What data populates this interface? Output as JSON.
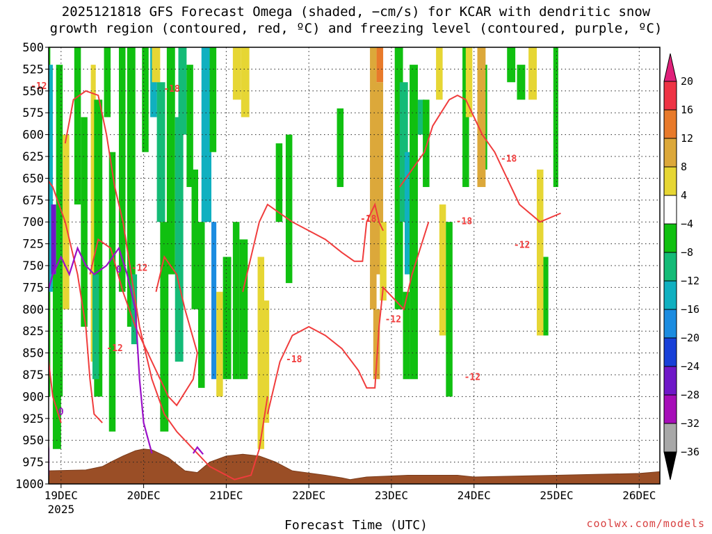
{
  "title_line1": "2025121818 GFS Forecast Omega (shaded, −cm/s) for KCAR with dendritic snow",
  "title_line2": "growth region (contoured, red, ºC) and freezing level (contoured, purple, ºC)",
  "credit": "coolwx.com/models",
  "chart_data": {
    "type": "heatmap",
    "xlabel": "Forecast Time (UTC)",
    "ylabel": "",
    "x_ticks": [
      {
        "label": "19DEC",
        "sub": "2025",
        "t": 0
      },
      {
        "label": "20DEC",
        "t": 1
      },
      {
        "label": "21DEC",
        "t": 2
      },
      {
        "label": "22DEC",
        "t": 3
      },
      {
        "label": "23DEC",
        "t": 4
      },
      {
        "label": "24DEC",
        "t": 5
      },
      {
        "label": "25DEC",
        "t": 6
      },
      {
        "label": "26DEC",
        "t": 7
      }
    ],
    "x_range_days": [
      -0.15,
      7.25
    ],
    "y_ticks": [
      500,
      525,
      550,
      575,
      600,
      625,
      650,
      675,
      700,
      725,
      750,
      775,
      800,
      825,
      850,
      875,
      900,
      925,
      950,
      975,
      1000
    ],
    "y_range_hpa": [
      500,
      1000
    ],
    "colorbar": {
      "labels": [
        "20",
        "16",
        "12",
        "8",
        "4",
        "−4",
        "−8",
        "−12",
        "−16",
        "−20",
        "−24",
        "−28",
        "−32",
        "−36"
      ],
      "colors": [
        "#ee3344",
        "#e87a2a",
        "#dca83a",
        "#e6d634",
        "#ffffff",
        "#10c010",
        "#14bb77",
        "#10b0c0",
        "#1c8ce0",
        "#1840d8",
        "#6f18c8",
        "#a60eb8",
        "#a8a8a8"
      ],
      "top_color": "#e0207a",
      "bottom_color": "#000000"
    },
    "contour_labels": [
      {
        "text": "-12",
        "t": -0.27,
        "p": 545
      },
      {
        "text": "-18",
        "t": 1.34,
        "p": 548
      },
      {
        "text": "-12",
        "t": 0.95,
        "p": 753
      },
      {
        "text": "-12",
        "t": 0.65,
        "p": 845
      },
      {
        "text": "-18",
        "t": 2.82,
        "p": 858
      },
      {
        "text": "-18",
        "t": 3.72,
        "p": 697
      },
      {
        "text": "-12",
        "t": 4.02,
        "p": 812
      },
      {
        "text": "-18",
        "t": 4.88,
        "p": 700
      },
      {
        "text": "-12",
        "t": 4.98,
        "p": 878
      },
      {
        "text": "-18",
        "t": 5.42,
        "p": 628
      },
      {
        "text": "-12",
        "t": 5.58,
        "p": 727
      },
      {
        "text": "0",
        "t": -1.2,
        "p": 918
      },
      {
        "text": "0",
        "t": -0.5,
        "p": 755
      }
    ]
  }
}
